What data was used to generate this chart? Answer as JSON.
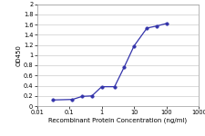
{
  "x": [
    0.0313,
    0.125,
    0.25,
    0.5,
    1.0,
    2.5,
    5.0,
    10.0,
    25.0,
    50.0,
    100.0
  ],
  "y": [
    0.12,
    0.13,
    0.19,
    0.2,
    0.38,
    0.38,
    0.77,
    1.18,
    1.53,
    1.57,
    1.62
  ],
  "line_color": "#3333aa",
  "marker_color": "#3333aa",
  "xlabel": "Recombinant Protein Concentration (ng/ml)",
  "ylabel": "OD450",
  "xlim": [
    0.01,
    1000
  ],
  "ylim": [
    0,
    2.0
  ],
  "yticks": [
    0,
    0.2,
    0.4,
    0.6,
    0.8,
    1.0,
    1.2,
    1.4,
    1.6,
    1.8,
    2.0
  ],
  "xtick_labels": [
    "0.01",
    "0.1",
    "1",
    "10",
    "100",
    "1000"
  ],
  "xtick_positions": [
    0.01,
    0.1,
    1,
    10,
    100,
    1000
  ],
  "background_color": "#ffffff",
  "plot_bg_color": "#ffffff",
  "grid_color": "#cccccc",
  "xlabel_fontsize": 5.0,
  "ylabel_fontsize": 5.0,
  "tick_fontsize": 4.8,
  "marker_size": 2.5,
  "line_width": 0.9
}
